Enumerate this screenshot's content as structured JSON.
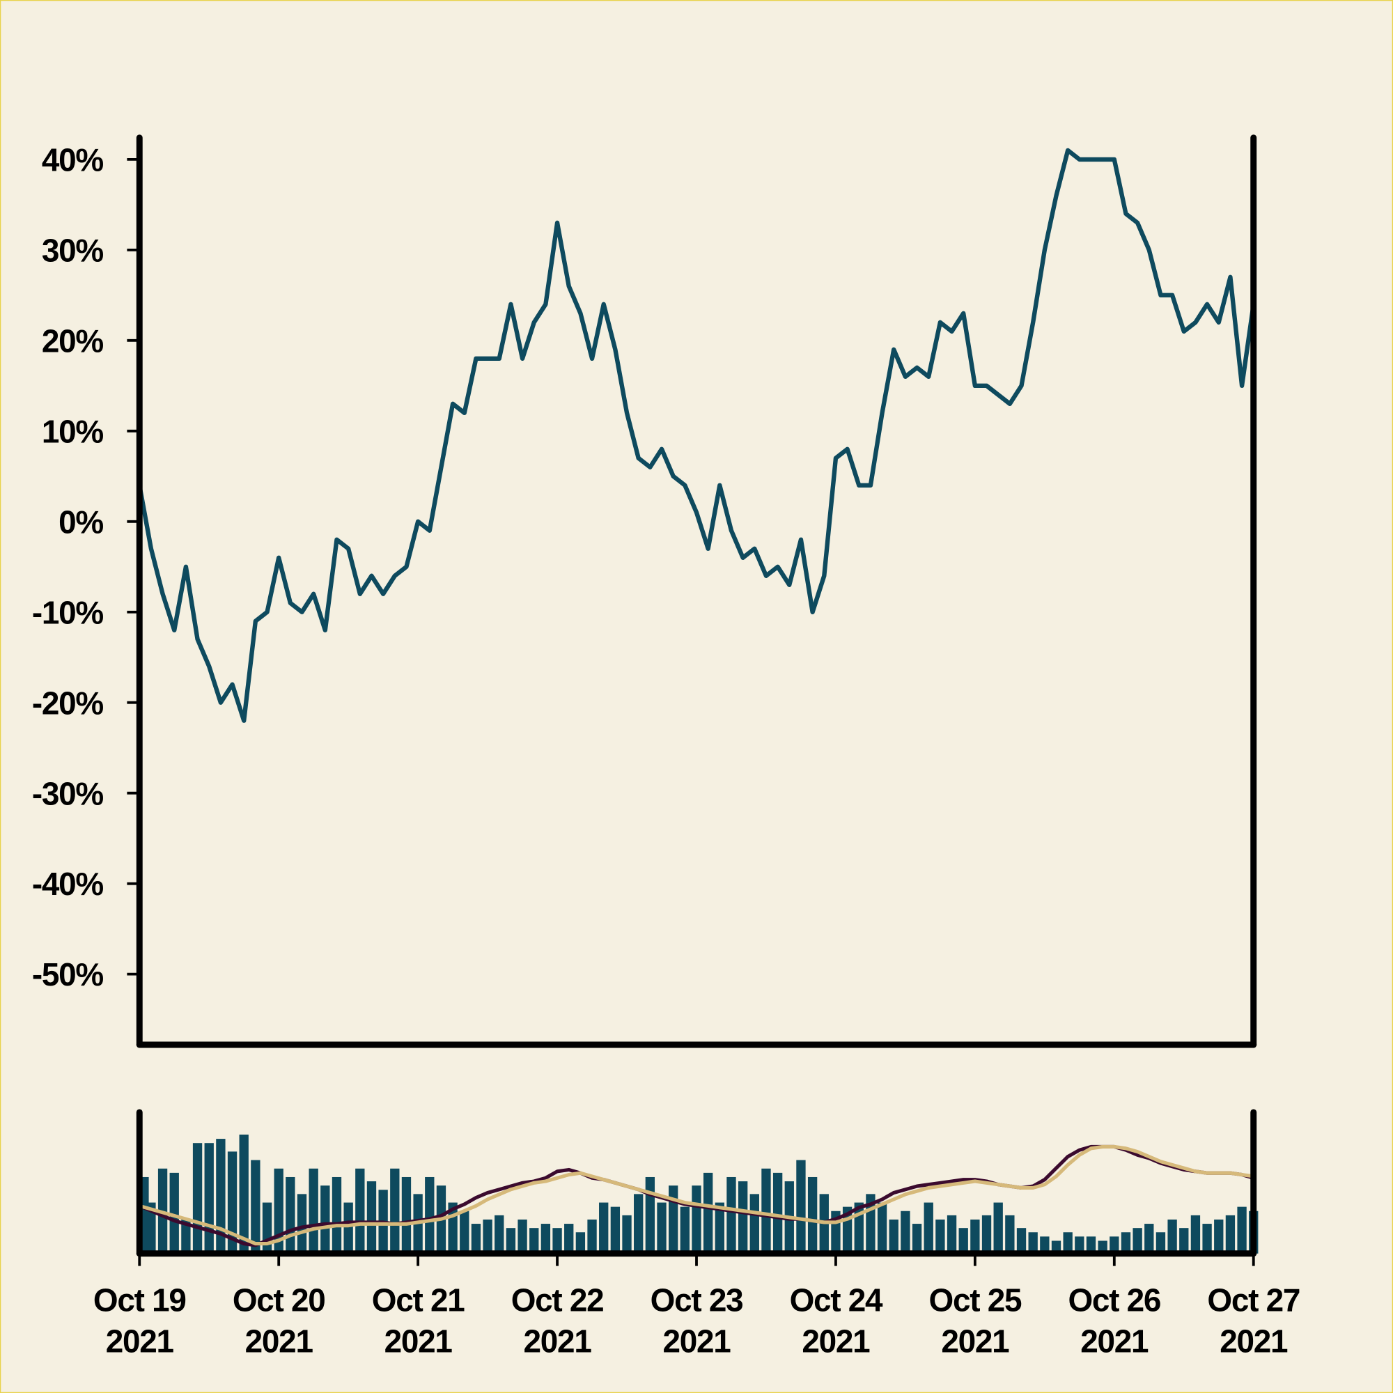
{
  "chart_data": {
    "type": "line",
    "x": [
      "2021-10-19 00:00",
      "2021-10-19 02:00",
      "2021-10-19 04:00",
      "2021-10-19 06:00",
      "2021-10-19 08:00",
      "2021-10-19 10:00",
      "2021-10-19 12:00",
      "2021-10-19 14:00",
      "2021-10-19 16:00",
      "2021-10-19 18:00",
      "2021-10-19 20:00",
      "2021-10-19 22:00",
      "2021-10-20 00:00",
      "2021-10-20 02:00",
      "2021-10-20 04:00",
      "2021-10-20 06:00",
      "2021-10-20 08:00",
      "2021-10-20 10:00",
      "2021-10-20 12:00",
      "2021-10-20 14:00",
      "2021-10-20 16:00",
      "2021-10-20 18:00",
      "2021-10-20 20:00",
      "2021-10-20 22:00",
      "2021-10-21 00:00",
      "2021-10-21 02:00",
      "2021-10-21 04:00",
      "2021-10-21 06:00",
      "2021-10-21 08:00",
      "2021-10-21 10:00",
      "2021-10-21 12:00",
      "2021-10-21 14:00",
      "2021-10-21 16:00",
      "2021-10-21 18:00",
      "2021-10-21 20:00",
      "2021-10-21 22:00",
      "2021-10-22 00:00",
      "2021-10-22 02:00",
      "2021-10-22 04:00",
      "2021-10-22 06:00",
      "2021-10-22 08:00",
      "2021-10-22 10:00",
      "2021-10-22 12:00",
      "2021-10-22 14:00",
      "2021-10-22 16:00",
      "2021-10-22 18:00",
      "2021-10-22 20:00",
      "2021-10-22 22:00",
      "2021-10-23 00:00",
      "2021-10-23 02:00",
      "2021-10-23 04:00",
      "2021-10-23 06:00",
      "2021-10-23 08:00",
      "2021-10-23 10:00",
      "2021-10-23 12:00",
      "2021-10-23 14:00",
      "2021-10-23 16:00",
      "2021-10-23 18:00",
      "2021-10-23 20:00",
      "2021-10-23 22:00",
      "2021-10-24 00:00",
      "2021-10-24 02:00",
      "2021-10-24 04:00",
      "2021-10-24 06:00",
      "2021-10-24 08:00",
      "2021-10-24 10:00",
      "2021-10-24 12:00",
      "2021-10-24 14:00",
      "2021-10-24 16:00",
      "2021-10-24 18:00",
      "2021-10-24 20:00",
      "2021-10-24 22:00",
      "2021-10-25 00:00",
      "2021-10-25 02:00",
      "2021-10-25 04:00",
      "2021-10-25 06:00",
      "2021-10-25 08:00",
      "2021-10-25 10:00",
      "2021-10-25 12:00",
      "2021-10-25 14:00",
      "2021-10-25 16:00",
      "2021-10-25 18:00",
      "2021-10-25 20:00",
      "2021-10-25 22:00",
      "2021-10-26 00:00",
      "2021-10-26 02:00",
      "2021-10-26 04:00",
      "2021-10-26 06:00",
      "2021-10-26 08:00",
      "2021-10-26 10:00",
      "2021-10-26 12:00",
      "2021-10-26 14:00",
      "2021-10-26 16:00",
      "2021-10-26 18:00",
      "2021-10-26 20:00",
      "2021-10-26 22:00",
      "2021-10-27 00:00"
    ],
    "series": [
      {
        "color": "#0e4a5e",
        "values": [
          4,
          -3,
          -8,
          -12,
          -5,
          -13,
          -16,
          -20,
          -18,
          -22,
          -11,
          -10,
          -4,
          -9,
          -10,
          -8,
          -12,
          -2,
          -3,
          -8,
          -6,
          -8,
          -6,
          -5,
          0,
          -1,
          6,
          13,
          12,
          18,
          18,
          18,
          24,
          18,
          22,
          24,
          33,
          26,
          23,
          18,
          24,
          19,
          12,
          7,
          6,
          8,
          5,
          4,
          1,
          -3,
          4,
          -1,
          -4,
          -3,
          -6,
          -5,
          -7,
          -2,
          -10,
          -6,
          7,
          8,
          4,
          4,
          12,
          19,
          16,
          17,
          16,
          22,
          21,
          23,
          15,
          15,
          14,
          13,
          15,
          22,
          30,
          36,
          41,
          40,
          40,
          40,
          40,
          34,
          33,
          30,
          25,
          25,
          21,
          22,
          24,
          22,
          27,
          15,
          24
        ]
      }
    ],
    "xlim": [
      "2021-10-19 00:00",
      "2021-10-27 00:00"
    ],
    "ylim": [
      -57.8,
      42.4
    ],
    "yticks": [
      {
        "value": -50,
        "label": "-50%"
      },
      {
        "value": -40,
        "label": "-40%"
      },
      {
        "value": -30,
        "label": "-30%"
      },
      {
        "value": -20,
        "label": "-20%"
      },
      {
        "value": -10,
        "label": "-10%"
      },
      {
        "value": 0,
        "label": "0%"
      },
      {
        "value": 10,
        "label": "10%"
      },
      {
        "value": 20,
        "label": "20%"
      },
      {
        "value": 30,
        "label": "30%"
      },
      {
        "value": 40,
        "label": "40%"
      }
    ],
    "xticks": [
      {
        "value": "2021-10-19 00:00",
        "label": "Oct 19",
        "sublabel": "2021"
      },
      {
        "value": "2021-10-20 00:00",
        "label": "Oct 20",
        "sublabel": "2021"
      },
      {
        "value": "2021-10-21 00:00",
        "label": "Oct 21",
        "sublabel": "2021"
      },
      {
        "value": "2021-10-22 00:00",
        "label": "Oct 22",
        "sublabel": "2021"
      },
      {
        "value": "2021-10-23 00:00",
        "label": "Oct 23",
        "sublabel": "2021"
      },
      {
        "value": "2021-10-24 00:00",
        "label": "Oct 24",
        "sublabel": "2021"
      },
      {
        "value": "2021-10-25 00:00",
        "label": "Oct 25",
        "sublabel": "2021"
      },
      {
        "value": "2021-10-26 00:00",
        "label": "Oct 26",
        "sublabel": "2021"
      },
      {
        "value": "2021-10-27 00:00",
        "label": "Oct 27",
        "sublabel": "2021"
      }
    ],
    "volume": {
      "type": "bar",
      "color": "#0e4a5e",
      "ylim": [
        0,
        160
      ],
      "values": [
        90,
        60,
        100,
        95,
        40,
        130,
        130,
        135,
        120,
        140,
        110,
        60,
        100,
        90,
        70,
        100,
        80,
        90,
        60,
        100,
        85,
        75,
        100,
        90,
        70,
        90,
        80,
        60,
        50,
        35,
        40,
        45,
        30,
        40,
        30,
        35,
        30,
        35,
        25,
        40,
        60,
        55,
        45,
        70,
        90,
        60,
        80,
        55,
        80,
        95,
        60,
        90,
        85,
        70,
        100,
        95,
        85,
        110,
        90,
        70,
        50,
        55,
        60,
        70,
        60,
        40,
        50,
        35,
        60,
        40,
        45,
        30,
        40,
        45,
        60,
        45,
        30,
        25,
        20,
        15,
        25,
        20,
        20,
        15,
        20,
        25,
        30,
        35,
        25,
        40,
        30,
        45,
        35,
        40,
        45,
        55,
        50
      ]
    },
    "averages_ylim": [
      -25,
      61
    ],
    "averages": [
      {
        "color": "#3b0a2e",
        "values": [
          4,
          1,
          -2,
          -5,
          -7,
          -9,
          -11,
          -13,
          -16,
          -19,
          -20,
          -17,
          -14,
          -11,
          -9,
          -8,
          -7,
          -7,
          -6,
          -6,
          -6,
          -6,
          -7,
          -6,
          -5,
          -4,
          -2,
          2,
          5,
          9,
          12,
          14,
          16,
          18,
          19,
          21,
          25,
          26,
          24,
          21,
          20,
          18,
          16,
          14,
          11,
          9,
          7,
          5,
          4,
          3,
          2,
          1,
          0,
          -1,
          -2,
          -3,
          -4,
          -4,
          -5,
          -6,
          -4,
          -1,
          3,
          5,
          8,
          12,
          14,
          16,
          17,
          18,
          19,
          20,
          20,
          19,
          17,
          16,
          15,
          16,
          20,
          27,
          34,
          38,
          40,
          40,
          40,
          38,
          35,
          33,
          30,
          28,
          26,
          25,
          24,
          24,
          24,
          23,
          21
        ]
      },
      {
        "color": "#d6b97a",
        "values": [
          4,
          2,
          0,
          -2,
          -4,
          -6,
          -8,
          -10,
          -13,
          -16,
          -19,
          -19,
          -17,
          -14,
          -12,
          -10,
          -9,
          -8,
          -8,
          -7,
          -7,
          -7,
          -7,
          -7,
          -6,
          -5,
          -4,
          -2,
          1,
          4,
          8,
          11,
          14,
          16,
          18,
          19,
          21,
          23,
          24,
          22,
          20,
          18,
          16,
          14,
          12,
          10,
          8,
          6,
          5,
          4,
          3,
          2,
          1,
          0,
          -1,
          -2,
          -3,
          -4,
          -5,
          -6,
          -6,
          -4,
          -1,
          2,
          5,
          8,
          11,
          13,
          15,
          16,
          17,
          18,
          19,
          18,
          17,
          16,
          15,
          15,
          17,
          22,
          29,
          35,
          39,
          40,
          40,
          39,
          37,
          34,
          31,
          29,
          27,
          25,
          24,
          24,
          24,
          23,
          22
        ]
      }
    ]
  }
}
